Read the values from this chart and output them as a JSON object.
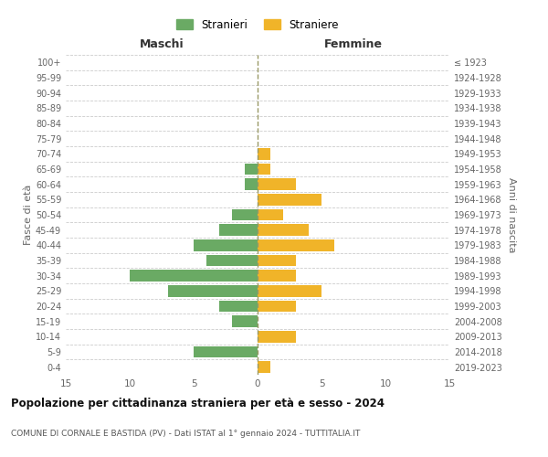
{
  "age_groups": [
    "0-4",
    "5-9",
    "10-14",
    "15-19",
    "20-24",
    "25-29",
    "30-34",
    "35-39",
    "40-44",
    "45-49",
    "50-54",
    "55-59",
    "60-64",
    "65-69",
    "70-74",
    "75-79",
    "80-84",
    "85-89",
    "90-94",
    "95-99",
    "100+"
  ],
  "birth_years": [
    "2019-2023",
    "2014-2018",
    "2009-2013",
    "2004-2008",
    "1999-2003",
    "1994-1998",
    "1989-1993",
    "1984-1988",
    "1979-1983",
    "1974-1978",
    "1969-1973",
    "1964-1968",
    "1959-1963",
    "1954-1958",
    "1949-1953",
    "1944-1948",
    "1939-1943",
    "1934-1938",
    "1929-1933",
    "1924-1928",
    "≤ 1923"
  ],
  "maschi": [
    0,
    5,
    0,
    2,
    3,
    7,
    10,
    4,
    5,
    3,
    2,
    0,
    1,
    1,
    0,
    0,
    0,
    0,
    0,
    0,
    0
  ],
  "femmine": [
    1,
    0,
    3,
    0,
    3,
    5,
    3,
    3,
    6,
    4,
    2,
    5,
    3,
    1,
    1,
    0,
    0,
    0,
    0,
    0,
    0
  ],
  "color_maschi": "#6aaa64",
  "color_femmine": "#f0b429",
  "title": "Popolazione per cittadinanza straniera per età e sesso - 2024",
  "subtitle": "COMUNE DI CORNALE E BASTIDA (PV) - Dati ISTAT al 1° gennaio 2024 - TUTTITALIA.IT",
  "xlabel_left": "Maschi",
  "xlabel_right": "Femmine",
  "ylabel_left": "Fasce di età",
  "ylabel_right": "Anni di nascita",
  "legend_maschi": "Stranieri",
  "legend_femmine": "Straniere",
  "xlim": 15,
  "background_color": "#ffffff"
}
